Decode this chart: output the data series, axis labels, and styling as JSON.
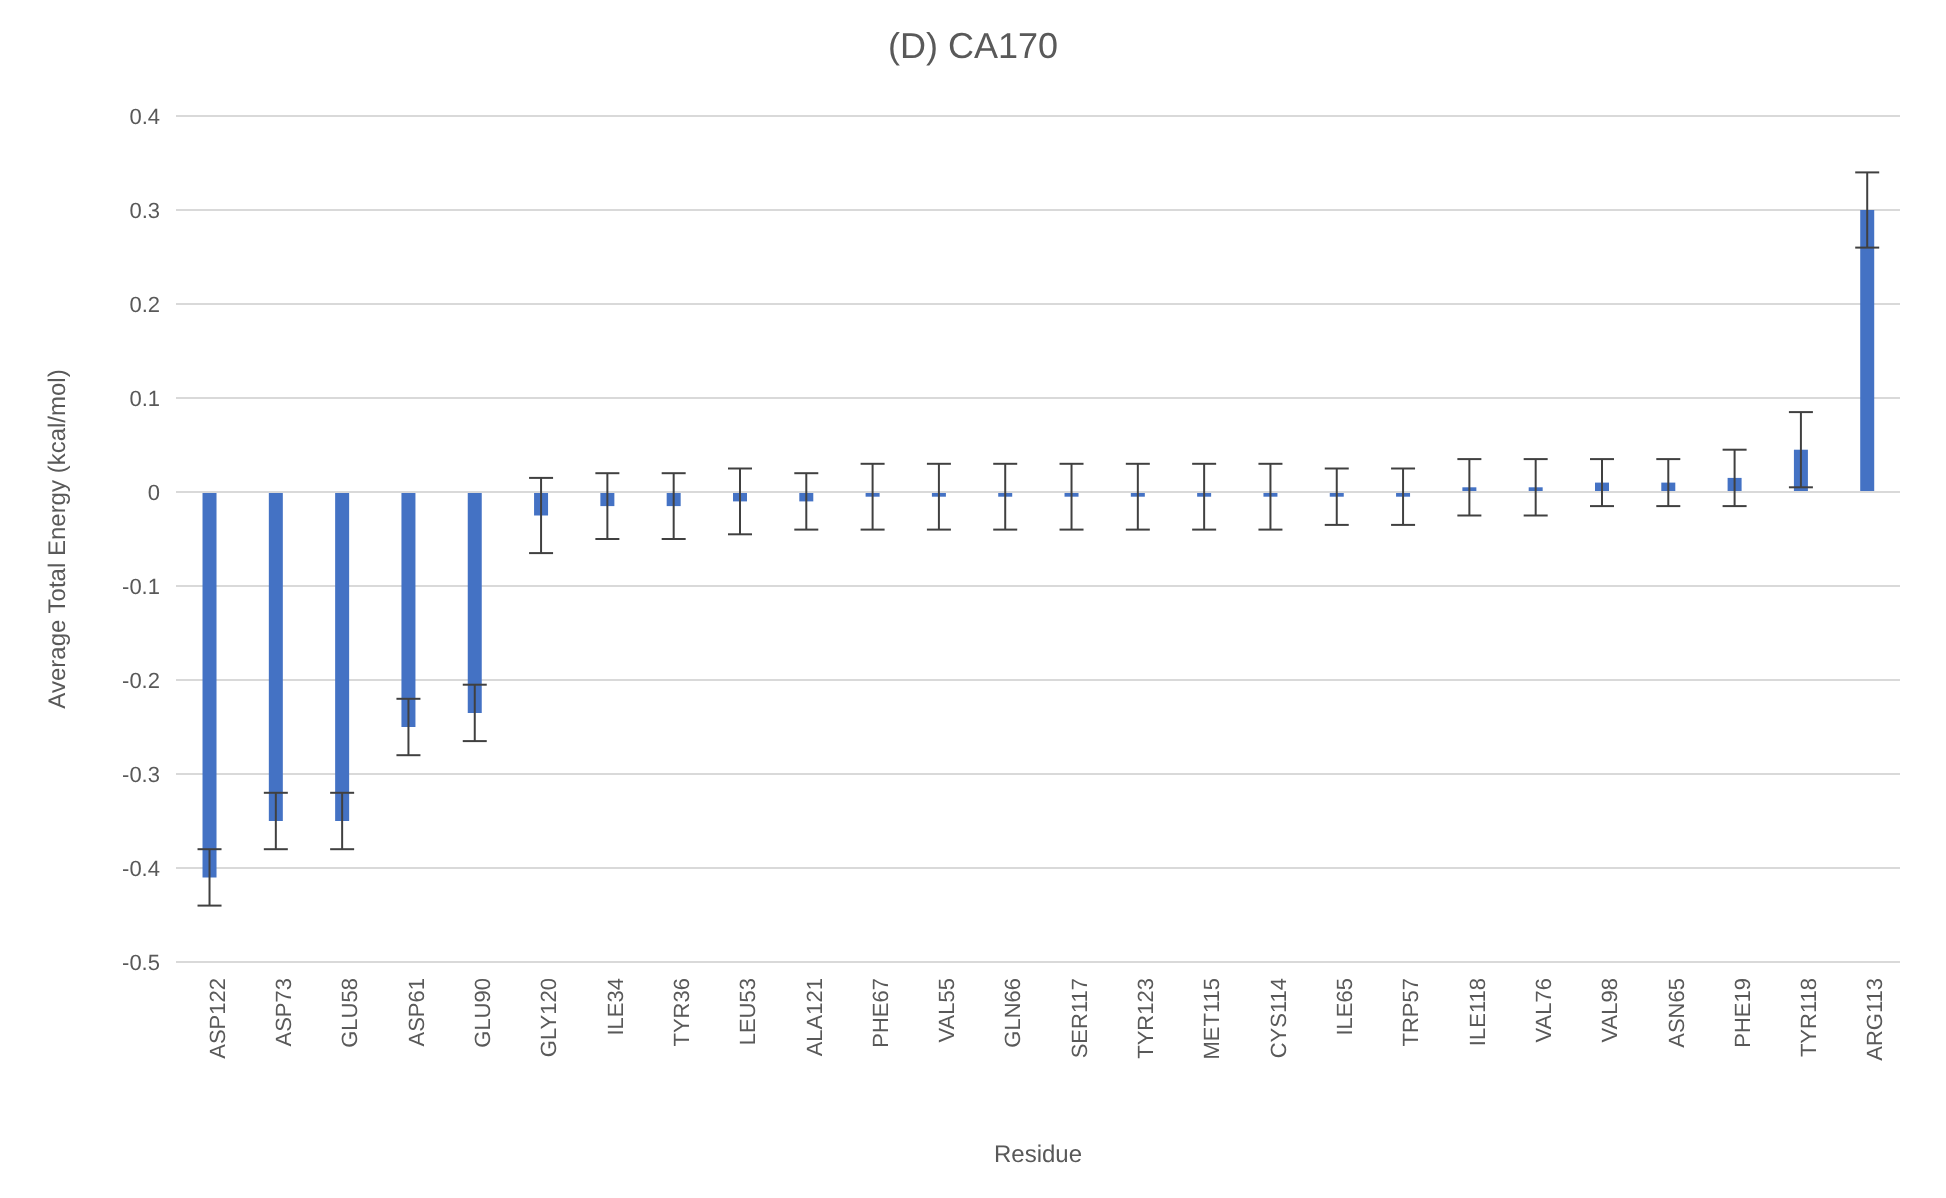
{
  "chart_data": {
    "type": "bar",
    "title": "(D) CA170",
    "xlabel": "Residue",
    "ylabel": "Average Total Energy (kcal/mol)",
    "categories": [
      "ASP122",
      "ASP73",
      "GLU58",
      "ASP61",
      "GLU90",
      "GLY120",
      "ILE34",
      "TYR36",
      "LEU53",
      "ALA121",
      "PHE67",
      "VAL55",
      "GLN66",
      "SER117",
      "TYR123",
      "MET115",
      "CYS114",
      "ILE65",
      "TRP57",
      "ILE118",
      "VAL76",
      "VAL98",
      "ASN65",
      "PHE19",
      "TYR118",
      "ARG113"
    ],
    "values": [
      -0.41,
      -0.35,
      -0.35,
      -0.25,
      -0.235,
      -0.025,
      -0.015,
      -0.015,
      -0.01,
      -0.01,
      -0.005,
      -0.005,
      -0.005,
      -0.005,
      -0.005,
      -0.005,
      -0.005,
      -0.005,
      -0.005,
      0.005,
      0.005,
      0.01,
      0.01,
      0.015,
      0.045,
      0.3
    ],
    "errors": [
      0.03,
      0.03,
      0.03,
      0.03,
      0.03,
      0.04,
      0.035,
      0.035,
      0.035,
      0.03,
      0.035,
      0.035,
      0.035,
      0.035,
      0.035,
      0.035,
      0.035,
      0.03,
      0.03,
      0.03,
      0.03,
      0.025,
      0.025,
      0.03,
      0.04,
      0.04
    ],
    "color": "#4472c4",
    "ylim": [
      -0.5,
      0.4
    ],
    "yticks": [
      -0.5,
      -0.4,
      -0.3,
      -0.2,
      -0.1,
      0,
      0.1,
      0.2,
      0.3,
      0.4
    ],
    "grid": "y"
  }
}
